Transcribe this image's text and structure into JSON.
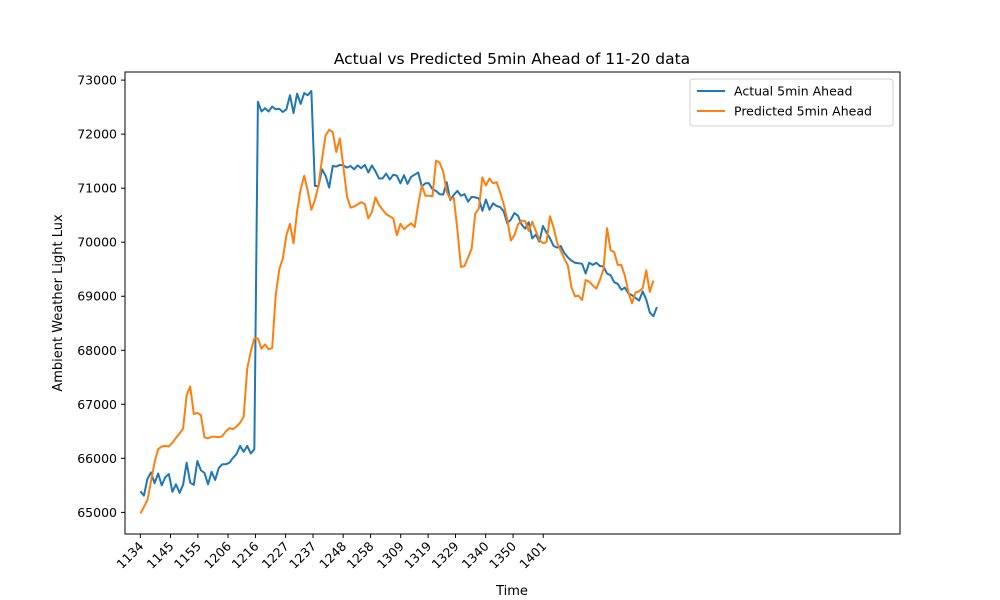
{
  "chart_data": {
    "type": "line",
    "title": "Actual vs Predicted 5min Ahead of 11-20 data",
    "xlabel": "Time",
    "ylabel": "Ambient Weather Light Lux",
    "x_ticks": [
      "1134",
      "1145",
      "1155",
      "1206",
      "1216",
      "1227",
      "1237",
      "1248",
      "1258",
      "1309",
      "1319",
      "1329",
      "1340",
      "1350",
      "1401"
    ],
    "y_ticks": [
      "65000",
      "66000",
      "67000",
      "68000",
      "69000",
      "70000",
      "71000",
      "72000",
      "73000"
    ],
    "xlim": [
      1128.4,
      1411.2
    ],
    "ylim": [
      64600,
      73150
    ],
    "x_tick_values": [
      1134,
      1145,
      1155,
      1166,
      1176,
      1187,
      1197,
      1208,
      1218,
      1229,
      1239,
      1249,
      1260,
      1270,
      1281
    ],
    "legend_position": "upper right",
    "grid": false,
    "series": [
      {
        "name": "Actual 5min Ahead",
        "color": "#1f77b4",
        "points": [
          [
            1134,
            65390
          ],
          [
            1135.3,
            65310
          ],
          [
            1136.6,
            65620
          ],
          [
            1137.9,
            65740
          ],
          [
            1139.2,
            65540
          ],
          [
            1140.5,
            65720
          ],
          [
            1141.8,
            65500
          ],
          [
            1143.1,
            65650
          ],
          [
            1144.4,
            65710
          ],
          [
            1145.7,
            65380
          ],
          [
            1147,
            65520
          ],
          [
            1148.3,
            65360
          ],
          [
            1149.6,
            65510
          ],
          [
            1150.9,
            65920
          ],
          [
            1152.2,
            65550
          ],
          [
            1153.5,
            65510
          ],
          [
            1154.8,
            65950
          ],
          [
            1156.1,
            65780
          ],
          [
            1157.4,
            65730
          ],
          [
            1158.7,
            65520
          ],
          [
            1160,
            65750
          ],
          [
            1161.3,
            65600
          ],
          [
            1162.6,
            65820
          ],
          [
            1163.9,
            65890
          ],
          [
            1165.2,
            65890
          ],
          [
            1166.5,
            65920
          ],
          [
            1167.8,
            66010
          ],
          [
            1169.1,
            66080
          ],
          [
            1170.4,
            66230
          ],
          [
            1171.7,
            66120
          ],
          [
            1173,
            66230
          ],
          [
            1174.3,
            66090
          ],
          [
            1175.6,
            66170
          ],
          [
            1176.9,
            72600
          ],
          [
            1178.2,
            72420
          ],
          [
            1179.5,
            72480
          ],
          [
            1180.8,
            72420
          ],
          [
            1182.1,
            72510
          ],
          [
            1183.4,
            72460
          ],
          [
            1184.7,
            72470
          ],
          [
            1186,
            72410
          ],
          [
            1187.3,
            72460
          ],
          [
            1188.6,
            72720
          ],
          [
            1189.9,
            72390
          ],
          [
            1191.2,
            72750
          ],
          [
            1192.5,
            72560
          ],
          [
            1193.8,
            72760
          ],
          [
            1195.1,
            72720
          ],
          [
            1196.4,
            72800
          ],
          [
            1197.7,
            71040
          ],
          [
            1199,
            71040
          ],
          [
            1200.3,
            71350
          ],
          [
            1201.6,
            71230
          ],
          [
            1202.9,
            71010
          ],
          [
            1204.2,
            71410
          ],
          [
            1205.5,
            71400
          ],
          [
            1206.8,
            71430
          ],
          [
            1208.1,
            71420
          ],
          [
            1209.4,
            71380
          ],
          [
            1210.7,
            71410
          ],
          [
            1212,
            71350
          ],
          [
            1213.3,
            71420
          ],
          [
            1214.6,
            71370
          ],
          [
            1215.9,
            71430
          ],
          [
            1217.2,
            71290
          ],
          [
            1218.5,
            71420
          ],
          [
            1219.8,
            71310
          ],
          [
            1221.1,
            71180
          ],
          [
            1222.4,
            71180
          ],
          [
            1223.7,
            71270
          ],
          [
            1225,
            71160
          ],
          [
            1226.3,
            71250
          ],
          [
            1227.6,
            71230
          ],
          [
            1228.9,
            71090
          ],
          [
            1230.2,
            71240
          ],
          [
            1231.5,
            71080
          ],
          [
            1232.8,
            71210
          ],
          [
            1234.1,
            71250
          ],
          [
            1235.4,
            71290
          ],
          [
            1236.7,
            71030
          ],
          [
            1238,
            71090
          ],
          [
            1239.3,
            71090
          ],
          [
            1240.6,
            70980
          ],
          [
            1241.9,
            70950
          ],
          [
            1243.2,
            70890
          ],
          [
            1244.5,
            70880
          ],
          [
            1245.8,
            71110
          ],
          [
            1247.1,
            70780
          ],
          [
            1248.4,
            70880
          ],
          [
            1249.7,
            70950
          ],
          [
            1251,
            70860
          ],
          [
            1252.3,
            70890
          ],
          [
            1253.6,
            70750
          ],
          [
            1254.9,
            70840
          ],
          [
            1256.2,
            70830
          ],
          [
            1257.5,
            70810
          ],
          [
            1258.8,
            70580
          ],
          [
            1260.1,
            70790
          ],
          [
            1261.4,
            70600
          ],
          [
            1262.7,
            70720
          ],
          [
            1264,
            70670
          ],
          [
            1265.3,
            70650
          ],
          [
            1266.6,
            70570
          ],
          [
            1267.9,
            70350
          ],
          [
            1269.2,
            70420
          ],
          [
            1270.5,
            70540
          ],
          [
            1271.8,
            70490
          ],
          [
            1273.1,
            70330
          ],
          [
            1274.4,
            70250
          ],
          [
            1275.7,
            70370
          ],
          [
            1277,
            70070
          ],
          [
            1278.3,
            70140
          ],
          [
            1279.6,
            70010
          ],
          [
            1280.9,
            70300
          ],
          [
            1282.2,
            70180
          ],
          [
            1283.5,
            70070
          ],
          [
            1284.8,
            69930
          ],
          [
            1286.1,
            69900
          ],
          [
            1287.4,
            69930
          ],
          [
            1288.7,
            69800
          ],
          [
            1290,
            69720
          ],
          [
            1291.3,
            69660
          ],
          [
            1292.6,
            69620
          ],
          [
            1293.9,
            69610
          ],
          [
            1295.2,
            69600
          ],
          [
            1296.5,
            69420
          ],
          [
            1297.8,
            69620
          ],
          [
            1299.1,
            69580
          ],
          [
            1300.4,
            69620
          ],
          [
            1301.7,
            69560
          ],
          [
            1303,
            69550
          ],
          [
            1304.3,
            69420
          ],
          [
            1305.6,
            69390
          ],
          [
            1306.9,
            69260
          ],
          [
            1308.2,
            69230
          ],
          [
            1309.5,
            69120
          ],
          [
            1310.8,
            69160
          ],
          [
            1312.1,
            69050
          ],
          [
            1313.4,
            69020
          ],
          [
            1314.7,
            68970
          ],
          [
            1316,
            68920
          ],
          [
            1317.3,
            69090
          ],
          [
            1318.6,
            68940
          ],
          [
            1319.9,
            68700
          ],
          [
            1321.2,
            68630
          ],
          [
            1322.5,
            68800
          ]
        ]
      },
      {
        "name": "Predicted 5min Ahead",
        "color": "#ff7f0e",
        "points": [
          [
            1134,
            64980
          ],
          [
            1135.3,
            65100
          ],
          [
            1136.6,
            65230
          ],
          [
            1137.9,
            65580
          ],
          [
            1139.2,
            65930
          ],
          [
            1140.5,
            66170
          ],
          [
            1141.8,
            66220
          ],
          [
            1143.1,
            66230
          ],
          [
            1144.4,
            66220
          ],
          [
            1145.7,
            66290
          ],
          [
            1147,
            66380
          ],
          [
            1148.3,
            66460
          ],
          [
            1149.6,
            66550
          ],
          [
            1150.9,
            67170
          ],
          [
            1152.2,
            67330
          ],
          [
            1153.5,
            66820
          ],
          [
            1154.8,
            66840
          ],
          [
            1156.1,
            66800
          ],
          [
            1157.4,
            66390
          ],
          [
            1158.7,
            66370
          ],
          [
            1160,
            66400
          ],
          [
            1161.3,
            66400
          ],
          [
            1162.6,
            66390
          ],
          [
            1163.9,
            66410
          ],
          [
            1165.2,
            66500
          ],
          [
            1166.5,
            66560
          ],
          [
            1167.8,
            66540
          ],
          [
            1169.1,
            66590
          ],
          [
            1170.4,
            66660
          ],
          [
            1171.7,
            66770
          ],
          [
            1173,
            67660
          ],
          [
            1174.3,
            67980
          ],
          [
            1175.6,
            68220
          ],
          [
            1176.9,
            68220
          ],
          [
            1178.2,
            68030
          ],
          [
            1179.5,
            68110
          ],
          [
            1180.8,
            68020
          ],
          [
            1182.1,
            68040
          ],
          [
            1183.4,
            69020
          ],
          [
            1184.7,
            69500
          ],
          [
            1186,
            69700
          ],
          [
            1187.3,
            70130
          ],
          [
            1188.6,
            70340
          ],
          [
            1189.9,
            69980
          ],
          [
            1191.2,
            70570
          ],
          [
            1192.5,
            70980
          ],
          [
            1193.8,
            71230
          ],
          [
            1195.1,
            70950
          ],
          [
            1196.4,
            70600
          ],
          [
            1197.7,
            70780
          ],
          [
            1199,
            71050
          ],
          [
            1200.3,
            71540
          ],
          [
            1201.6,
            71980
          ],
          [
            1202.9,
            72080
          ],
          [
            1204.2,
            72040
          ],
          [
            1205.5,
            71670
          ],
          [
            1206.8,
            71920
          ],
          [
            1208.1,
            71390
          ],
          [
            1209.4,
            70850
          ],
          [
            1210.7,
            70640
          ],
          [
            1212,
            70660
          ],
          [
            1213.3,
            70700
          ],
          [
            1214.6,
            70740
          ],
          [
            1215.9,
            70710
          ],
          [
            1217.2,
            70440
          ],
          [
            1218.5,
            70560
          ],
          [
            1219.8,
            70830
          ],
          [
            1221.1,
            70690
          ],
          [
            1222.4,
            70600
          ],
          [
            1223.7,
            70520
          ],
          [
            1225,
            70480
          ],
          [
            1226.3,
            70440
          ],
          [
            1227.6,
            70130
          ],
          [
            1228.9,
            70340
          ],
          [
            1230.2,
            70240
          ],
          [
            1231.5,
            70300
          ],
          [
            1232.8,
            70350
          ],
          [
            1234.1,
            70280
          ],
          [
            1235.4,
            70700
          ],
          [
            1236.7,
            71050
          ],
          [
            1238,
            70860
          ],
          [
            1239.3,
            70860
          ],
          [
            1240.6,
            70850
          ],
          [
            1241.9,
            71510
          ],
          [
            1243.2,
            71470
          ],
          [
            1244.5,
            71310
          ],
          [
            1245.8,
            70930
          ],
          [
            1247.1,
            70800
          ],
          [
            1248.4,
            70820
          ],
          [
            1249.7,
            70220
          ],
          [
            1251,
            69540
          ],
          [
            1252.3,
            69560
          ],
          [
            1253.6,
            69720
          ],
          [
            1254.9,
            69880
          ],
          [
            1256.2,
            70530
          ],
          [
            1257.5,
            70620
          ],
          [
            1258.8,
            71200
          ],
          [
            1260.1,
            71050
          ],
          [
            1261.4,
            71180
          ],
          [
            1262.7,
            71090
          ],
          [
            1264,
            71110
          ],
          [
            1265.3,
            70920
          ],
          [
            1266.6,
            70700
          ],
          [
            1267.9,
            70420
          ],
          [
            1269.2,
            70030
          ],
          [
            1270.5,
            70130
          ],
          [
            1271.8,
            70330
          ],
          [
            1273.1,
            70400
          ],
          [
            1274.4,
            70390
          ],
          [
            1275.7,
            70210
          ],
          [
            1277,
            70380
          ],
          [
            1278.3,
            70210
          ],
          [
            1279.6,
            70040
          ],
          [
            1280.9,
            69980
          ],
          [
            1282.2,
            70000
          ],
          [
            1283.5,
            70480
          ],
          [
            1284.8,
            70270
          ],
          [
            1286.1,
            69990
          ],
          [
            1287.4,
            69840
          ],
          [
            1288.7,
            69700
          ],
          [
            1290,
            69570
          ],
          [
            1291.3,
            69170
          ],
          [
            1292.6,
            69000
          ],
          [
            1293.9,
            69010
          ],
          [
            1295.2,
            68930
          ],
          [
            1296.5,
            69300
          ],
          [
            1297.8,
            69270
          ],
          [
            1299.1,
            69200
          ],
          [
            1300.4,
            69140
          ],
          [
            1301.7,
            69300
          ],
          [
            1303,
            69500
          ],
          [
            1304.3,
            70260
          ],
          [
            1305.6,
            69850
          ],
          [
            1306.9,
            69820
          ],
          [
            1308.2,
            69580
          ],
          [
            1309.5,
            69580
          ],
          [
            1310.8,
            69380
          ],
          [
            1312.1,
            69080
          ],
          [
            1313.4,
            68870
          ],
          [
            1314.7,
            69070
          ],
          [
            1316,
            69090
          ],
          [
            1317.3,
            69150
          ],
          [
            1318.6,
            69480
          ],
          [
            1319.9,
            69080
          ],
          [
            1321.2,
            69290
          ]
        ]
      }
    ]
  }
}
